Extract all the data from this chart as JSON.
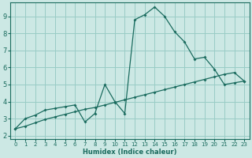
{
  "title": "",
  "xlabel": "Humidex (Indice chaleur)",
  "bg_color": "#cce8e4",
  "grid_color": "#99ccc6",
  "line_color": "#1a6b5e",
  "xlim": [
    -0.5,
    23.5
  ],
  "ylim": [
    1.8,
    9.8
  ],
  "xticks": [
    0,
    1,
    2,
    3,
    4,
    5,
    6,
    7,
    8,
    9,
    10,
    11,
    12,
    13,
    14,
    15,
    16,
    17,
    18,
    19,
    20,
    21,
    22,
    23
  ],
  "yticks": [
    2,
    3,
    4,
    5,
    6,
    7,
    8,
    9
  ],
  "curve1_x": [
    0,
    1,
    2,
    3,
    4,
    5,
    6,
    7,
    8,
    9,
    10,
    11,
    12,
    13,
    14,
    15,
    16,
    17,
    18,
    19,
    20,
    21,
    22,
    23
  ],
  "curve1_y": [
    2.4,
    3.0,
    3.2,
    3.5,
    3.6,
    3.7,
    3.8,
    2.8,
    3.3,
    5.0,
    4.0,
    3.3,
    8.8,
    9.1,
    9.55,
    9.0,
    8.1,
    7.5,
    6.5,
    6.6,
    5.9,
    5.0,
    5.1,
    5.2
  ],
  "curve2_x": [
    0,
    1,
    2,
    3,
    4,
    5,
    6,
    7,
    8,
    9,
    10,
    11,
    12,
    13,
    14,
    15,
    16,
    17,
    18,
    19,
    20,
    21,
    22,
    23
  ],
  "curve2_y": [
    2.4,
    2.55,
    2.75,
    2.95,
    3.1,
    3.25,
    3.4,
    3.55,
    3.65,
    3.8,
    3.95,
    4.1,
    4.25,
    4.4,
    4.55,
    4.7,
    4.85,
    5.0,
    5.15,
    5.3,
    5.45,
    5.6,
    5.7,
    5.2
  ]
}
